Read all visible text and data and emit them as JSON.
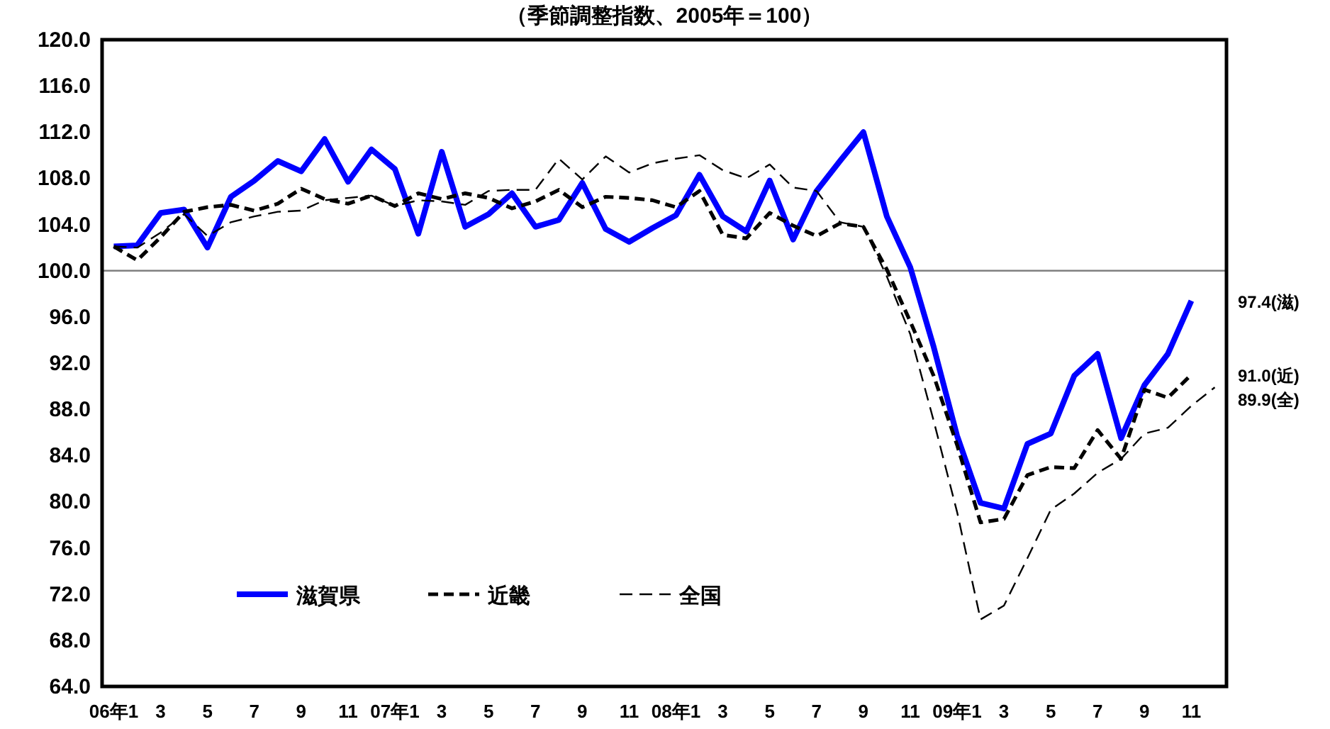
{
  "chart_data": {
    "type": "line",
    "title": "（季節調整指数、2005年＝100）",
    "categories": [
      "06年1",
      null,
      "3",
      null,
      "5",
      null,
      "7",
      null,
      "9",
      null,
      "11",
      null,
      "07年1",
      null,
      "3",
      null,
      "5",
      null,
      "7",
      null,
      "9",
      null,
      "11",
      null,
      "08年1",
      null,
      "3",
      null,
      "5",
      null,
      "7",
      null,
      "9",
      null,
      "11",
      null,
      "09年1",
      null,
      "3",
      null,
      "5",
      null,
      "7",
      null,
      "9",
      null,
      "11",
      null
    ],
    "series": [
      {
        "name": "滋賀県",
        "color": "#0000ff",
        "line_style": "solid",
        "values": [
          102.1,
          102.2,
          105.0,
          105.3,
          102.0,
          106.4,
          107.8,
          109.5,
          108.6,
          111.4,
          107.7,
          110.5,
          108.8,
          103.2,
          110.3,
          103.8,
          104.9,
          106.7,
          103.8,
          104.4,
          107.6,
          103.6,
          102.5,
          103.7,
          104.8,
          108.3,
          104.7,
          103.4,
          107.8,
          102.7,
          106.9,
          109.5,
          112.0,
          104.7,
          100.3,
          93.4,
          85.7,
          79.9,
          79.4,
          85.0,
          85.9,
          90.9,
          92.8,
          85.5,
          90.1,
          92.8,
          97.4,
          null
        ]
      },
      {
        "name": "近畿",
        "color": "#000000",
        "line_style": "dashed",
        "values": [
          102.1,
          100.9,
          102.9,
          105.1,
          105.5,
          105.7,
          105.2,
          105.8,
          107.1,
          106.2,
          105.8,
          106.5,
          105.6,
          106.7,
          106.2,
          106.7,
          106.3,
          105.4,
          106.0,
          107.0,
          105.5,
          106.4,
          106.3,
          106.1,
          105.5,
          106.9,
          103.1,
          102.8,
          105.0,
          103.9,
          103.0,
          104.1,
          103.8,
          100.1,
          95.6,
          90.9,
          84.9,
          78.2,
          78.5,
          82.3,
          83.0,
          82.9,
          86.2,
          83.7,
          89.7,
          89.0,
          91.0,
          null
        ]
      },
      {
        "name": "全国",
        "color": "#000000",
        "line_style": "dashed",
        "values": [
          102.1,
          102.0,
          103.3,
          104.9,
          103.0,
          104.2,
          104.7,
          105.1,
          105.2,
          106.1,
          106.3,
          106.5,
          105.6,
          106.1,
          106.0,
          105.7,
          106.9,
          107.0,
          107.0,
          109.7,
          107.9,
          109.9,
          108.5,
          109.3,
          109.7,
          110.0,
          108.7,
          108.0,
          109.2,
          107.2,
          106.9,
          104.2,
          103.8,
          99.5,
          94.5,
          87.0,
          79.1,
          69.8,
          71.0,
          75.1,
          79.3,
          80.7,
          82.5,
          83.7,
          85.9,
          86.4,
          88.3,
          89.9
        ]
      }
    ],
    "ylim": [
      64,
      120
    ],
    "yticks": [
      {
        "value": 64,
        "label": "64.0"
      },
      {
        "value": 68,
        "label": "68.0"
      },
      {
        "value": 72,
        "label": "72.0"
      },
      {
        "value": 76,
        "label": "76.0"
      },
      {
        "value": 80,
        "label": "80.0"
      },
      {
        "value": 84,
        "label": "84.0"
      },
      {
        "value": 88,
        "label": "88.0"
      },
      {
        "value": 92,
        "label": "92.0"
      },
      {
        "value": 96,
        "label": "96.0"
      },
      {
        "value": 100,
        "label": "100.0"
      },
      {
        "value": 104,
        "label": "104.0"
      },
      {
        "value": 108,
        "label": "108.0"
      },
      {
        "value": 112,
        "label": "112.0"
      },
      {
        "value": 116,
        "label": "116.0"
      },
      {
        "value": 120,
        "label": "120.0"
      }
    ],
    "ref_lines": [
      {
        "axis": "y",
        "value": 100,
        "color": "#808080"
      }
    ],
    "annotations": [
      "97.4(滋)",
      "91.0(近)",
      "89.9(全)"
    ],
    "legend": "bottom left",
    "grid": false,
    "marker": "none"
  }
}
